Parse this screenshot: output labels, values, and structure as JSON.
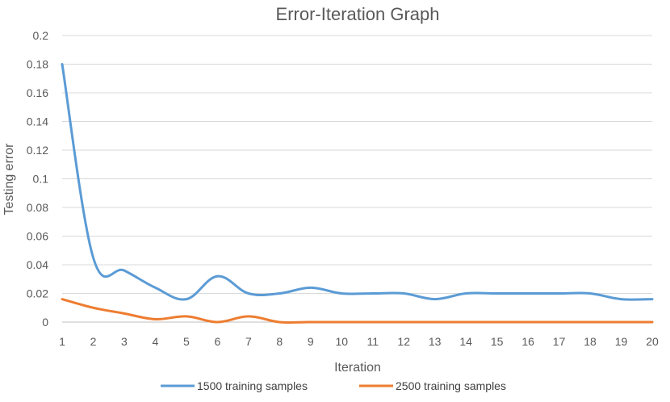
{
  "chart_data": {
    "type": "line",
    "title": "Error-Iteration Graph",
    "xlabel": "Iteration",
    "ylabel": "Testing error",
    "categories": [
      "1",
      "2",
      "3",
      "4",
      "5",
      "6",
      "7",
      "8",
      "9",
      "10",
      "11",
      "12",
      "13",
      "14",
      "15",
      "16",
      "17",
      "18",
      "19",
      "20"
    ],
    "yticks": [
      "0",
      "0.02",
      "0.04",
      "0.06",
      "0.08",
      "0.1",
      "0.12",
      "0.14",
      "0.16",
      "0.18",
      "0.2"
    ],
    "ylim": [
      0,
      0.2
    ],
    "grid": true,
    "legend_position": "bottom",
    "series": [
      {
        "name": "1500 training samples",
        "color": "#5b9bd5",
        "values": [
          0.18,
          0.045,
          0.036,
          0.024,
          0.016,
          0.032,
          0.02,
          0.02,
          0.024,
          0.02,
          0.02,
          0.02,
          0.016,
          0.02,
          0.02,
          0.02,
          0.02,
          0.02,
          0.016,
          0.016
        ]
      },
      {
        "name": "2500  training samples",
        "color": "#ed7d31",
        "values": [
          0.016,
          0.01,
          0.006,
          0.002,
          0.004,
          0.0,
          0.004,
          0.0,
          0.0,
          0.0,
          0.0,
          0.0,
          0.0,
          0.0,
          0.0,
          0.0,
          0.0,
          0.0,
          0.0,
          0.0
        ]
      }
    ]
  }
}
